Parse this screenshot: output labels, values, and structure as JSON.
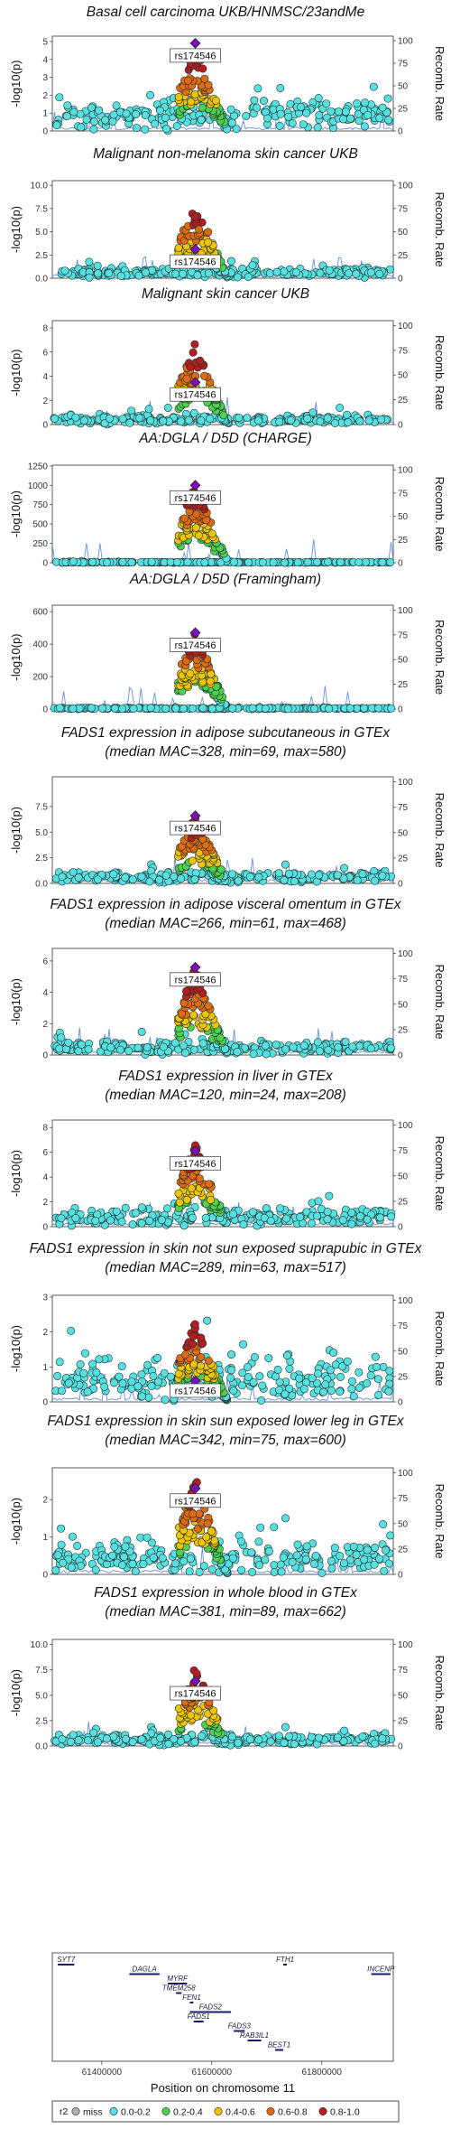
{
  "chart_data": [
    {
      "type": "scatter",
      "title": "Basal cell carcinoma UKB/HNMSC/23andMe",
      "subtitle": "",
      "ylabel": "-log10(p)",
      "y2label": "Recomb. Rate",
      "yticks": [
        0,
        1,
        2,
        3,
        4,
        5
      ],
      "ylim": [
        0,
        5.3
      ],
      "lead": {
        "label": "rs174546",
        "x": 61570000,
        "y": 4.9
      },
      "peak": 4.6,
      "base": 1.2,
      "spread": 0.75,
      "secondary": 0.35
    },
    {
      "type": "scatter",
      "title": "Malignant non-melanoma skin cancer UKB",
      "subtitle": "",
      "ylabel": "-log10(p)",
      "y2label": "Recomb. Rate",
      "yticks": [
        "0.0",
        "2.5",
        "5.0",
        "7.5",
        "10.0"
      ],
      "ylim": [
        0,
        10.5
      ],
      "lead": {
        "label": "rs174546",
        "x": 61570000,
        "y": 3.1
      },
      "peak": 8.2,
      "base": 0.7,
      "spread": 0.55,
      "secondary": 0.4
    },
    {
      "type": "scatter",
      "title": "Malignant skin cancer UKB",
      "subtitle": "",
      "ylabel": "-log10(p)",
      "y2label": "Recomb. Rate",
      "yticks": [
        0,
        2,
        4,
        6,
        8
      ],
      "ylim": [
        0,
        8.6
      ],
      "lead": {
        "label": "rs174546",
        "x": 61570000,
        "y": 3.5
      },
      "peak": 6.8,
      "base": 0.5,
      "spread": 0.45,
      "secondary": 0.35
    },
    {
      "type": "scatter",
      "title": "AA:DGLA / D5D (CHARGE)",
      "subtitle": "",
      "ylabel": "-log10(p)",
      "y2label": "Recomb. Rate",
      "yticks": [
        0,
        250,
        500,
        750,
        1000,
        1250
      ],
      "ylim": [
        0,
        1260
      ],
      "lead": {
        "label": "rs174546",
        "x": 61570000,
        "y": 1000
      },
      "peak": 1000,
      "base": 8,
      "spread": 6,
      "secondary": 0.05
    },
    {
      "type": "scatter",
      "title": "AA:DGLA / D5D (Framingham)",
      "subtitle": "",
      "ylabel": "-log10(p)",
      "y2label": "Recomb. Rate",
      "yticks": [
        0,
        200,
        400,
        600
      ],
      "ylim": [
        0,
        640
      ],
      "lead": {
        "label": "rs174546",
        "x": 61570000,
        "y": 470
      },
      "peak": 480,
      "base": 6,
      "spread": 5,
      "secondary": 0.05
    },
    {
      "type": "scatter",
      "title": "FADS1 expression in adipose subcutaneous in GTEx",
      "subtitle": "(median MAC=328, min=69, max=580)",
      "ylabel": "-log10(p)",
      "y2label": "Recomb. Rate",
      "yticks": [
        "0.0",
        "2.5",
        "5.0",
        "7.5"
      ],
      "ylim": [
        0,
        10.4
      ],
      "lead": {
        "label": "rs174546",
        "x": 61570000,
        "y": 6.6
      },
      "peak": 6.6,
      "base": 0.8,
      "spread": 0.6,
      "secondary": 0.3
    },
    {
      "type": "scatter",
      "title": "FADS1 expression in adipose visceral omentum in GTEx",
      "subtitle": "(median MAC=266, min=61, max=468)",
      "ylabel": "-log10(p)",
      "y2label": "Recomb. Rate",
      "yticks": [
        0,
        2,
        4,
        6
      ],
      "ylim": [
        0,
        6.8
      ],
      "lead": {
        "label": "rs174546",
        "x": 61570000,
        "y": 5.6
      },
      "peak": 5.6,
      "base": 0.6,
      "spread": 0.45,
      "secondary": 0.25
    },
    {
      "type": "scatter",
      "title": "FADS1 expression in liver in GTEx",
      "subtitle": "(median MAC=120, min=24, max=208)",
      "ylabel": "-log10(p)",
      "y2label": "Recomb. Rate",
      "yticks": [
        0,
        2,
        4,
        6,
        8
      ],
      "ylim": [
        0,
        8.6
      ],
      "lead": {
        "label": "rs174546",
        "x": 61570000,
        "y": 6.1
      },
      "peak": 6.8,
      "base": 1.0,
      "spread": 0.9,
      "secondary": 0.45
    },
    {
      "type": "scatter",
      "title": "FADS1 expression in skin not sun exposed suprapubic in GTEx",
      "subtitle": "(median MAC=289, min=63, max=517)",
      "ylabel": "-log10(p)",
      "y2label": "Recomb. Rate",
      "yticks": [
        0,
        1,
        2,
        3
      ],
      "ylim": [
        0,
        3.05
      ],
      "lead": {
        "label": "rs174546",
        "x": 61570000,
        "y": 0.6
      },
      "peak": 2.3,
      "base": 0.7,
      "spread": 0.5,
      "secondary": 1.0
    },
    {
      "type": "scatter",
      "title": "FADS1 expression in skin sun exposed lower leg in GTEx",
      "subtitle": "(median MAC=342, min=75, max=600)",
      "ylabel": "-log10(p)",
      "y2label": "Recomb. Rate",
      "yticks": [
        0,
        1,
        2
      ],
      "ylim": [
        0,
        2.85
      ],
      "lead": {
        "label": "rs174546",
        "x": 61570000,
        "y": 2.3
      },
      "peak": 2.6,
      "base": 0.55,
      "spread": 0.45,
      "secondary": 0.6
    },
    {
      "type": "scatter",
      "title": "FADS1 expression in whole blood in GTEx",
      "subtitle": "(median MAC=381, min=89, max=662)",
      "ylabel": "-log10(p)",
      "y2label": "Recomb. Rate",
      "yticks": [
        "0.0",
        "2.5",
        "5.0",
        "7.5",
        "10.0"
      ],
      "ylim": [
        0,
        10.5
      ],
      "lead": {
        "label": "rs174546",
        "x": 61570000,
        "y": 6.4
      },
      "peak": 8.0,
      "base": 0.8,
      "spread": 0.6,
      "secondary": 0.35
    }
  ],
  "shared_axes": {
    "xlabel": "Position on chromosome 11",
    "xlim": [
      61310000,
      61930000
    ],
    "xticks": [
      {
        "v": 61400000,
        "label": "61400000"
      },
      {
        "v": 61600000,
        "label": "61600000"
      },
      {
        "v": 61800000,
        "label": "61800000"
      }
    ],
    "y2ticks": [
      0,
      25,
      50,
      75,
      100
    ],
    "y2lim": [
      0,
      105
    ]
  },
  "genes": [
    {
      "name": "SYT7",
      "start": 61320000,
      "end": 61350000,
      "row": 0
    },
    {
      "name": "DAGLA",
      "start": 61450000,
      "end": 61505000,
      "row": 1
    },
    {
      "name": "MYRF",
      "start": 61520000,
      "end": 61555000,
      "row": 2
    },
    {
      "name": "TMEM258",
      "start": 61535000,
      "end": 61545000,
      "row": 3
    },
    {
      "name": "FEN1",
      "start": 61560000,
      "end": 61565000,
      "row": 4
    },
    {
      "name": "FADS2",
      "start": 61560000,
      "end": 61635000,
      "row": 5
    },
    {
      "name": "FADS1",
      "start": 61567000,
      "end": 61585000,
      "row": 6
    },
    {
      "name": "FADS3",
      "start": 61640000,
      "end": 61660000,
      "row": 7
    },
    {
      "name": "RAB3IL1",
      "start": 61665000,
      "end": 61690000,
      "row": 8
    },
    {
      "name": "BEST1",
      "start": 61715000,
      "end": 61730000,
      "row": 9
    },
    {
      "name": "FTH1",
      "start": 61730000,
      "end": 61735000,
      "row": 0
    },
    {
      "name": "INCENP",
      "start": 61890000,
      "end": 61925000,
      "row": 1
    }
  ],
  "legend": {
    "title": "r2",
    "items": [
      {
        "label": "miss",
        "color": "#b0b0b0"
      },
      {
        "label": "0.0-0.2",
        "color": "#56e0e0"
      },
      {
        "label": "0.2-0.4",
        "color": "#4ed14e"
      },
      {
        "label": "0.4-0.6",
        "color": "#f0c400"
      },
      {
        "label": "0.6-0.8",
        "color": "#e06a10"
      },
      {
        "label": "0.8-1.0",
        "color": "#b51e1e"
      }
    ],
    "lead_color": "#7a10b8"
  },
  "recomb_color": "#4a7ce0"
}
